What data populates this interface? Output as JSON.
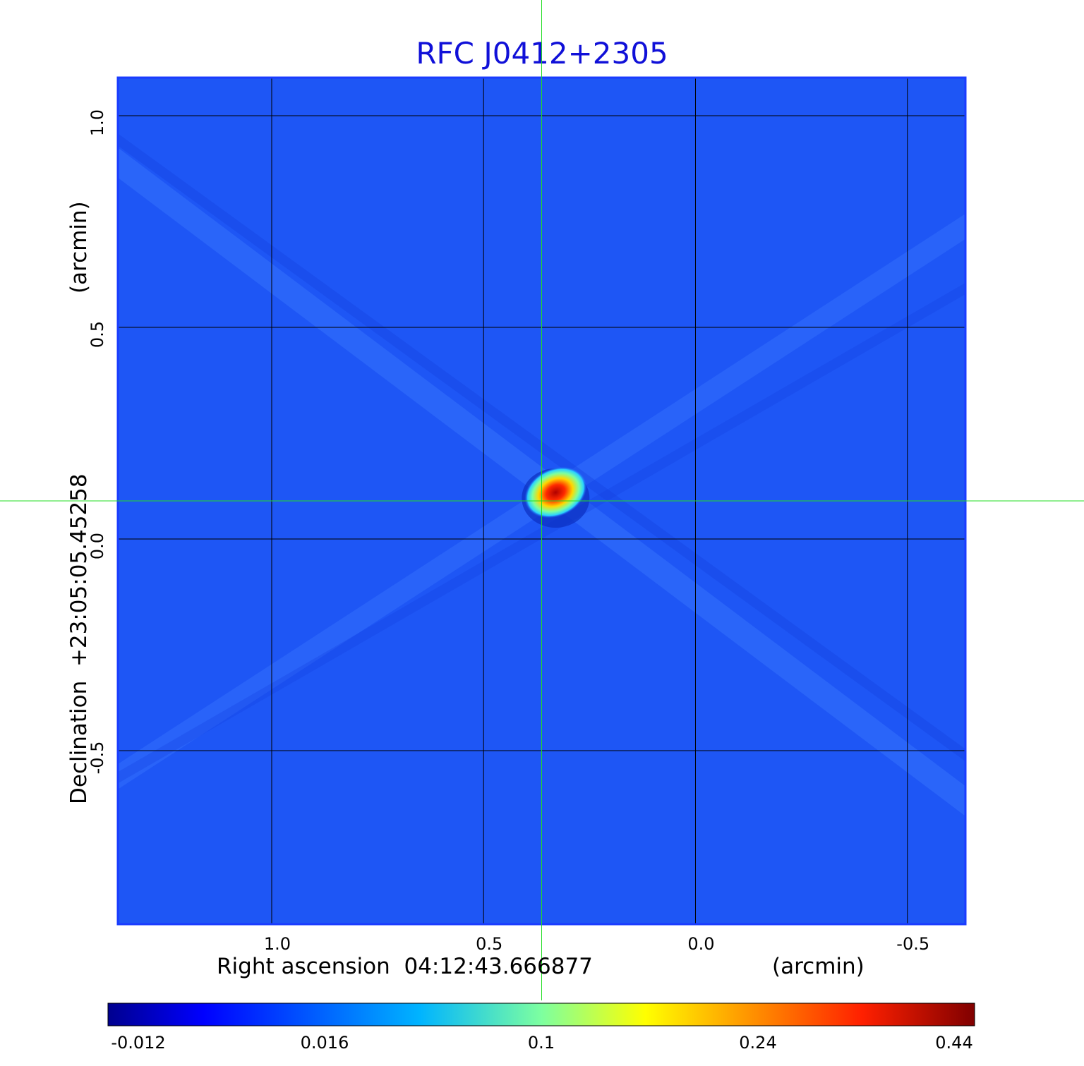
{
  "colors": {
    "title": "#1010d8",
    "crosshair": "#22dd22",
    "grid": "#000000",
    "frame": "#1a3cff",
    "background_field": "#1e56f5"
  },
  "chart_data": {
    "type": "heatmap",
    "title": "RFC J0412+2305",
    "xlabel": "Right ascension  04:12:43.666877",
    "xunit": "(arcmin)",
    "ylabel": "Declination  +23:05:05.45258",
    "yunit": "(arcmin)",
    "x_ticks": [
      1.0,
      0.5,
      0.0,
      -0.5
    ],
    "x_tick_labels": [
      "1.0",
      "0.5",
      "0.0",
      "-0.5"
    ],
    "y_ticks": [
      1.0,
      0.5,
      0.0,
      -0.5
    ],
    "y_tick_labels": [
      "1.0",
      "0.5",
      "0.0",
      "-0.5"
    ],
    "xlim": [
      1.363,
      -0.637
    ],
    "ylim": [
      -0.91,
      1.09
    ],
    "grid": true,
    "crosshair": {
      "x": 0.363,
      "y": 0.09
    },
    "colormap": "jet",
    "colorbar": {
      "tick_labels": [
        "-0.012",
        "0.016",
        "0.1",
        "0.24",
        "0.44"
      ],
      "vmin": -0.012,
      "vmax": 0.44
    },
    "source_peak": {
      "x": 0.33,
      "y": 0.11,
      "value": 0.44
    }
  }
}
